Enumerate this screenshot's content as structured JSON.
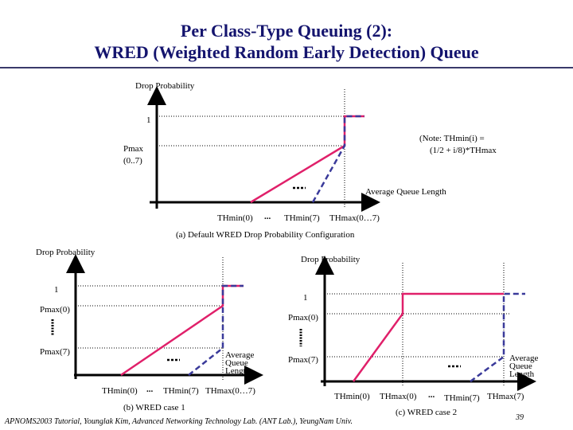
{
  "slide": {
    "title_line1": "Per Class-Type Queuing (2):",
    "title_line2": "WRED (Weighted Random Early Detection)  Queue",
    "footer": "APNOMS2003 Tutorial,   Younglak Kim,  Advanced Networking Technology Lab. (ANT Lab.),  YeungNam Univ.",
    "page_number": "39"
  },
  "colors": {
    "title": "#14146e",
    "class0_line": "#e0206a",
    "class7_line": "#3a3a9a"
  },
  "diagram_a": {
    "y_label": "Drop Probability",
    "y_tick_1": "1",
    "y_tick_pmax_1": "Pmax",
    "y_tick_pmax_2": "(0..7)",
    "x_label": "Average Queue Length",
    "x_tick_thmin0": "THmin(0)",
    "x_tick_ellipsis": "...",
    "x_tick_thmin7": "THmin(7)",
    "x_tick_thmax": "THmax(0…7)",
    "note_1": "(Note: THmin(i) =",
    "note_2": "(1/2 + i/8)*THmax",
    "caption": "(a) Default WRED Drop Probability Configuration"
  },
  "diagram_b": {
    "y_label": "Drop Probability",
    "y_tick_1": "1",
    "y_tick_pmax0": "Pmax(0)",
    "y_tick_pmax7": "Pmax(7)",
    "x_label_1": "Average",
    "x_label_2": "Queue",
    "x_label_3": "Length",
    "x_tick_thmin0": "THmin(0)",
    "x_tick_ellipsis": "...",
    "x_tick_thmin7": "THmin(7)",
    "x_tick_thmax": "THmax(0…7)",
    "caption": "(b) WRED case 1"
  },
  "diagram_c": {
    "y_label": "Drop Probability",
    "y_tick_1": "1",
    "y_tick_pmax0": "Pmax(0)",
    "y_tick_pmax7": "Pmax(7)",
    "x_label_1": "Average",
    "x_label_2": "Queue",
    "x_label_3": "Length",
    "x_tick_thmin0": "THmin(0)",
    "x_tick_thmax0": "THmax(0)",
    "x_tick_ellipsis": "...",
    "x_tick_thmin7": "THmin(7)",
    "x_tick_thmax7": "THmax(7)",
    "caption": "(c) WRED case 2"
  }
}
